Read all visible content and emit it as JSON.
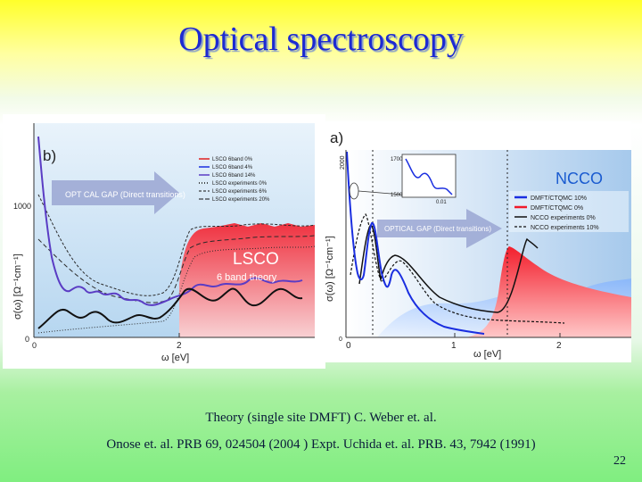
{
  "slide": {
    "title": "Optical spectroscopy",
    "caption_line1": "Theory (single site DMFT) C. Weber et. al.",
    "caption_line2": "Onose et. al. PRB 69, 024504 (2004 ) Expt. Uchida et. al. PRB. 43, 7942 (1991)",
    "page_number": "22"
  },
  "figure_b": {
    "panel_label": "b)",
    "y_tick_top": "1000",
    "y_tick_zero": "0",
    "x_tick_zero": "0",
    "x_tick_two": "2",
    "xlabel": "ω [eV]",
    "ylabel": "σ(ω) [Ω⁻¹cm⁻¹]",
    "arrow_text": "OPT CAL GAP (Direct transitions)",
    "material": "LSCO",
    "subtitle": "6 band theory",
    "legend": [
      "LSCO 6band 0%",
      "LSCO 6band 4%",
      "LSCO 6band 14%",
      "LSCO experiments 0%",
      "LSCO experiments 6%",
      "LSCO experiments 20%"
    ]
  },
  "figure_a": {
    "panel_label": "a)",
    "y_tick_top": "2000",
    "y_tick_zero": "0",
    "x_tick_zero": "0",
    "x_tick_one": "1",
    "x_tick_two": "2",
    "xlabel": "ω [eV]",
    "ylabel": "σ(ω) [Ω⁻¹cm⁻¹]",
    "arrow_text": "OPTICAL GAP (Direct transitions)",
    "material": "NCCO",
    "inset_tick_top": "1700",
    "inset_tick_bottom": "1500",
    "inset_tick_x": "0.01",
    "legend": [
      "DMFT/CTQMC 10%",
      "DMFT/CTQMC 0%",
      "NCCO experiments 0%",
      "NCCO experiments 10%"
    ]
  },
  "colors": {
    "title": "#1d2ad1",
    "purple_curve": "#5a3cc4",
    "blue_curve": "#1a2ee0",
    "red_fill": "#f0192a",
    "arrow": "#9aa6d2"
  }
}
